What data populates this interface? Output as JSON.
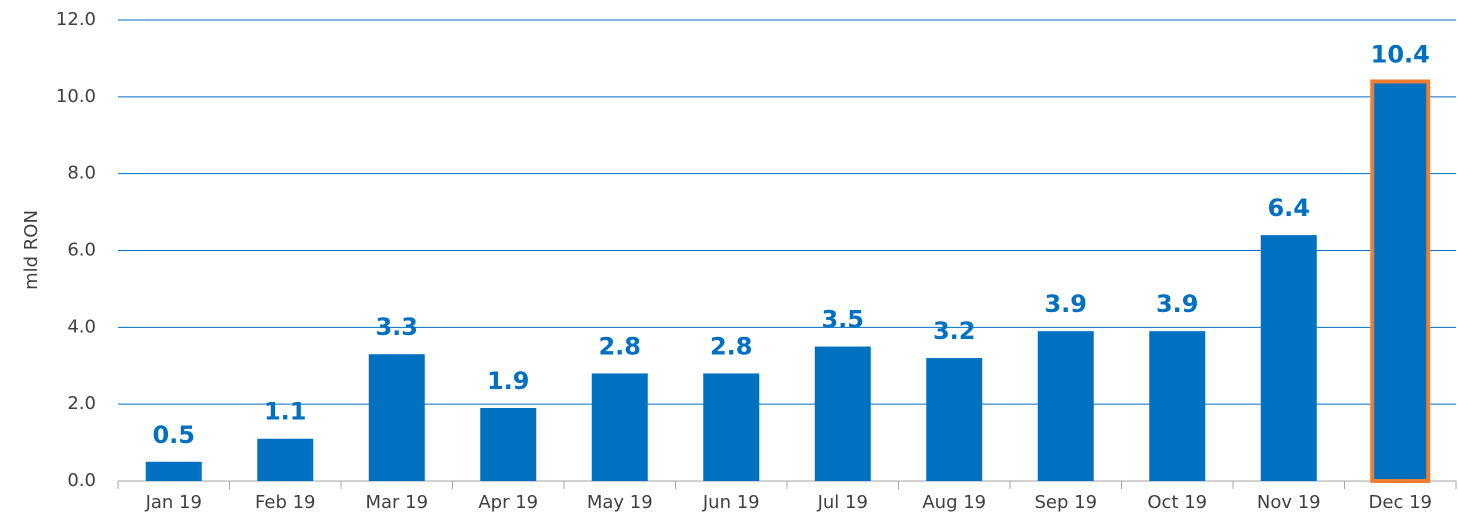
{
  "chart_data": {
    "type": "bar",
    "y_label": "mld RON",
    "categories": [
      "Jan 19",
      "Feb 19",
      "Mar 19",
      "Apr 19",
      "May 19",
      "Jun 19",
      "Jul 19",
      "Aug 19",
      "Sep 19",
      "Oct 19",
      "Nov 19",
      "Dec 19"
    ],
    "values": [
      0.5,
      1.1,
      3.3,
      1.9,
      2.8,
      2.8,
      3.5,
      3.2,
      3.9,
      3.9,
      6.4,
      10.4
    ],
    "color": "#0070c0",
    "edgecolors": [
      null,
      null,
      null,
      null,
      null,
      null,
      null,
      null,
      null,
      null,
      null,
      "#ed7d31"
    ],
    "ylim": [
      0,
      12
    ],
    "yticks": [
      {
        "value": 0,
        "label": "0.0"
      },
      {
        "value": 2,
        "label": "2.0"
      },
      {
        "value": 4,
        "label": "4.0"
      },
      {
        "value": 6,
        "label": "6.0"
      },
      {
        "value": 8,
        "label": "8.0"
      },
      {
        "value": 10,
        "label": "10.0"
      },
      {
        "value": 12,
        "label": "12.0"
      }
    ],
    "grid": true
  }
}
